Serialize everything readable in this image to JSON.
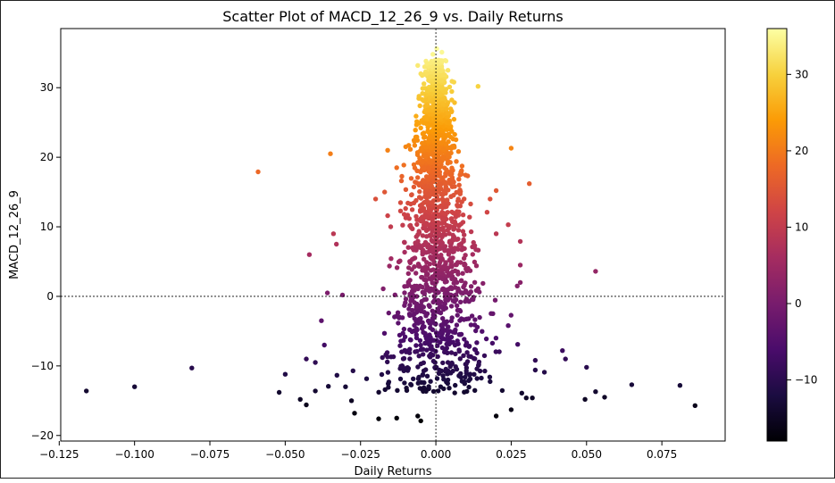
{
  "chart_data": {
    "type": "scatter",
    "title": "Scatter Plot of MACD_12_26_9 vs. Daily Returns",
    "xlabel": "Daily Returns",
    "ylabel": "MACD_12_26_9",
    "xlim": [
      -0.1245,
      0.096
    ],
    "ylim": [
      -20.8,
      38.5
    ],
    "xticks": [
      -0.125,
      -0.1,
      -0.075,
      -0.05,
      -0.025,
      0.0,
      0.025,
      0.05,
      0.075
    ],
    "xtick_labels": [
      "−0.125",
      "−0.100",
      "−0.075",
      "−0.050",
      "−0.025",
      "0.000",
      "0.025",
      "0.050",
      "0.075"
    ],
    "yticks": [
      -20,
      -10,
      0,
      10,
      20,
      30
    ],
    "ytick_labels": [
      "−20",
      "−10",
      "0",
      "10",
      "20",
      "30"
    ],
    "grid": false,
    "reference_lines": {
      "x": 0,
      "y": 0,
      "style": "dotted"
    },
    "colormap": "inferno",
    "color_by": "MACD_12_26_9",
    "colorbar": {
      "range": [
        -18,
        36
      ],
      "ticks": [
        -10,
        0,
        10,
        20,
        30
      ],
      "tick_labels": [
        "−10",
        "0",
        "10",
        "20",
        "30"
      ],
      "stops": [
        "#000004",
        "#1b0c41",
        "#4a0c6b",
        "#781c6d",
        "#a52c60",
        "#cf4446",
        "#ed6925",
        "#fb9b06",
        "#f7d13d",
        "#fcffa4"
      ]
    },
    "points": [
      [
        -0.116,
        -13.6
      ],
      [
        -0.1,
        -13.0
      ],
      [
        -0.081,
        -10.3
      ],
      [
        -0.059,
        17.9
      ],
      [
        -0.035,
        20.5
      ],
      [
        -0.042,
        6.0
      ],
      [
        0.053,
        3.6
      ],
      [
        0.031,
        16.2
      ],
      [
        0.025,
        21.3
      ],
      [
        0.065,
        -12.7
      ],
      [
        0.081,
        -12.8
      ],
      [
        0.086,
        -15.7
      ],
      [
        0.056,
        -14.5
      ],
      [
        0.053,
        -13.7
      ],
      [
        0.0495,
        -14.8
      ],
      [
        0.05,
        -10.2
      ],
      [
        0.042,
        -7.8
      ],
      [
        0.043,
        -9.0
      ],
      [
        0.036,
        -10.9
      ],
      [
        -0.052,
        -13.8
      ],
      [
        -0.05,
        -11.2
      ],
      [
        -0.045,
        -14.8
      ],
      [
        -0.043,
        -15.6
      ],
      [
        -0.04,
        -13.6
      ],
      [
        -0.043,
        -9.0
      ],
      [
        -0.04,
        -9.5
      ],
      [
        -0.037,
        -7.0
      ],
      [
        -0.038,
        -3.5
      ],
      [
        -0.036,
        0.5
      ],
      [
        -0.034,
        9.0
      ],
      [
        -0.033,
        7.5
      ],
      [
        -0.031,
        0.2
      ],
      [
        -0.03,
        -13.0
      ],
      [
        -0.028,
        -15.0
      ],
      [
        -0.027,
        -16.8
      ],
      [
        -0.019,
        -17.6
      ],
      [
        -0.013,
        -17.5
      ],
      [
        -0.006,
        -17.2
      ],
      [
        -0.005,
        -17.9
      ],
      [
        0.02,
        -17.2
      ],
      [
        0.025,
        -16.3
      ],
      [
        0.03,
        -14.6
      ],
      [
        0.032,
        -14.6
      ],
      [
        0.033,
        -9.2
      ],
      [
        0.033,
        -10.6
      ],
      [
        0.024,
        -4.2
      ],
      [
        0.027,
        1.5
      ],
      [
        0.028,
        2.0
      ],
      [
        0.028,
        4.5
      ],
      [
        0.028,
        7.9
      ],
      [
        0.024,
        10.3
      ],
      [
        -0.016,
        21.0
      ],
      [
        -0.013,
        18.5
      ],
      [
        -0.01,
        21.5
      ],
      [
        -0.02,
        14.0
      ],
      [
        -0.017,
        15.0
      ],
      [
        -0.016,
        11.6
      ],
      [
        -0.015,
        10.0
      ],
      [
        0.018,
        14.0
      ],
      [
        0.02,
        15.2
      ],
      [
        0.017,
        12.1
      ],
      [
        0.02,
        9.0
      ],
      [
        0.0003,
        35.6
      ],
      [
        -0.001,
        34.8
      ],
      [
        0.002,
        35.1
      ],
      [
        -0.003,
        33.5
      ],
      [
        -0.006,
        33.2
      ],
      [
        0.006,
        30.8
      ],
      [
        -0.005,
        32.0
      ],
      [
        0.014,
        30.2
      ],
      [
        0.002,
        33.8
      ],
      [
        0.004,
        32.5
      ]
    ],
    "points_note": "representative sample of the dense point cloud; remaining points reproduced by the drawing script"
  },
  "colors": {
    "axis": "#000000",
    "background": "#ffffff"
  }
}
